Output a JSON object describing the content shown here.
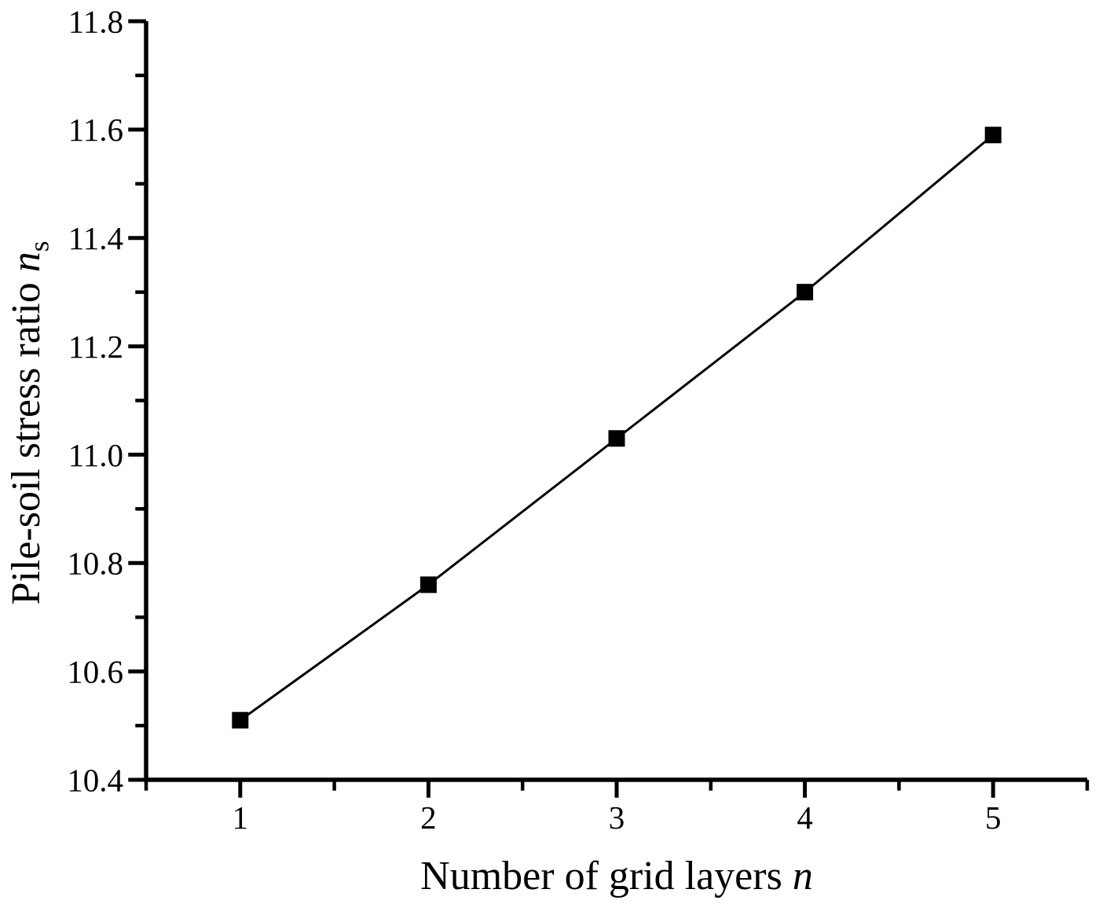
{
  "chart_data": {
    "type": "line",
    "title": "",
    "x": [
      1,
      2,
      3,
      4,
      5
    ],
    "series": [
      {
        "name": "pile-soil-stress-ratio",
        "values": [
          10.51,
          10.76,
          11.03,
          11.3,
          11.59
        ]
      }
    ],
    "xlabel": {
      "prefix": "Number of grid layers ",
      "symbol": "n",
      "subscript": ""
    },
    "ylabel": {
      "prefix": "Pile-soil stress ratio ",
      "symbol": "n",
      "subscript": "s"
    },
    "axes": {
      "x": {
        "min": 0.5,
        "max": 5.5,
        "major_ticks": [
          1,
          2,
          3,
          4,
          5
        ],
        "tick_labels": [
          "1",
          "2",
          "3",
          "4",
          "5"
        ],
        "minor_step": 0.5
      },
      "y": {
        "min": 10.4,
        "max": 11.8,
        "major_ticks": [
          10.4,
          10.6,
          10.8,
          11.0,
          11.2,
          11.4,
          11.6,
          11.8
        ],
        "tick_labels": [
          "10.4",
          "10.6",
          "10.8",
          "11.0",
          "11.2",
          "11.4",
          "11.6",
          "11.8"
        ],
        "minor_step": 0.1
      }
    },
    "grid": false,
    "legend": null,
    "marker": "filled-square",
    "colors": {
      "line": "#000000",
      "marker": "#000000",
      "axis": "#000000",
      "text": "#000000",
      "background": "#ffffff"
    }
  }
}
